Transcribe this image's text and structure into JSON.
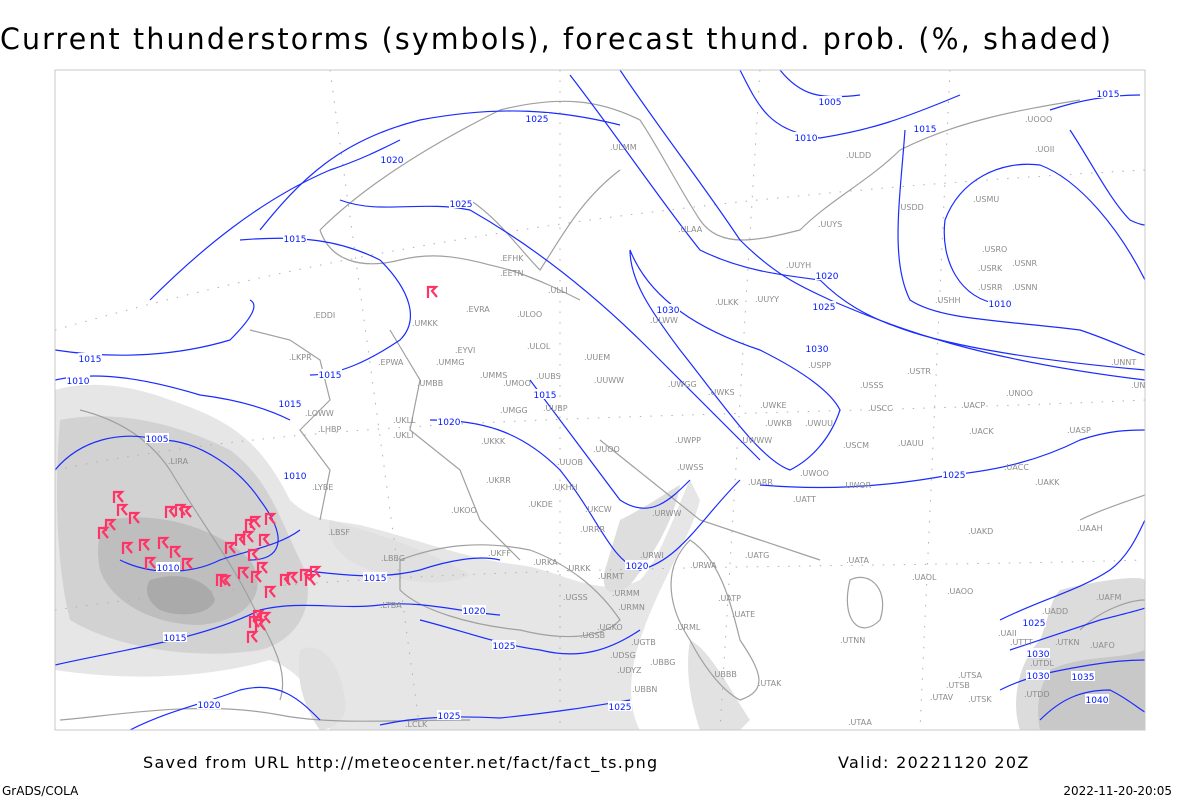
{
  "title": "Current thunderstorms (symbols), forecast thund. prob. (%, shaded)",
  "footer": {
    "saved_from": "Saved from URL http://meteocenter.net/fact/fact_ts.png",
    "valid": "Valid: 20221120 20Z",
    "software": "GrADS/COLA",
    "generated": "2022-11-20-20:05"
  },
  "map": {
    "colors": {
      "isobar": "#1a2cff",
      "coastline": "#a0a0a0",
      "thunderstorm_symbol": "#ff3366",
      "probability_shading": [
        "#e6e6e6",
        "#d2d2d2",
        "#bebebe",
        "#aaaaaa"
      ]
    },
    "isobar_unit": "hPa",
    "isobar_labels": [
      "1025",
      "1020",
      "1025",
      "1015",
      "1005",
      "1010",
      "1015",
      "1015",
      "1020",
      "1025",
      "1030",
      "1030",
      "1010",
      "1015",
      "1015",
      "1010",
      "1015",
      "1015",
      "1020",
      "1005",
      "1010",
      "1010",
      "1015",
      "1020",
      "1020",
      "1015",
      "1025",
      "1025",
      "1020",
      "1025",
      "1025",
      "1025",
      "1030",
      "1030",
      "1035",
      "1040"
    ],
    "stations": [
      "EDDI",
      "UMKK",
      "EVRA",
      "ULOO",
      "EYVI",
      "ULOL",
      "UMMG",
      "EPWA",
      "LKPR",
      "UMMS",
      "UMBB",
      "UMOO",
      "UUBS",
      "UUEM",
      "UUWW",
      "UMGG",
      "UUBP",
      "UKLL",
      "UKLI",
      "UKKK",
      "UUOO",
      "UUOB",
      "LOWW",
      "LHBP",
      "LYBE",
      "LBSF",
      "LIRA",
      "LBBG",
      "LTBA",
      "LCLK",
      "UKOO",
      "UKRR",
      "UKDE",
      "UKHH",
      "UKCW",
      "URRR",
      "URWW",
      "UKFF",
      "URKA",
      "URKK",
      "URMT",
      "URWI",
      "URWA",
      "UATG",
      "UGSS",
      "URMM",
      "URMN",
      "UGKO",
      "UGSB",
      "UGTB",
      "UDSG",
      "UBBG",
      "UDYZ",
      "UBBN",
      "UBBB",
      "UTAK",
      "UTAA",
      "URML",
      "UATP",
      "UATE",
      "UATA",
      "UAOL",
      "UAOO",
      "UAKD",
      "UAAH",
      "UAFM",
      "UADD",
      "UAII",
      "UTKN",
      "UAFO",
      "UTTT",
      "UTDL",
      "UTSA",
      "UTSB",
      "UTAV",
      "UTSK",
      "UTDD",
      "UTNN",
      "EFHK",
      "EETN",
      "ULLI",
      "ULMM",
      "ULAA",
      "UUYS",
      "ULKK",
      "UUYY",
      "UUYH",
      "ULWW",
      "USPP",
      "USSS",
      "USCC",
      "USCM",
      "UAUU",
      "UWKS",
      "UWKE",
      "UWKB",
      "UWUU",
      "UWWW",
      "UWGG",
      "UWPP",
      "UWSS",
      "UWOO",
      "UWOR",
      "UARR",
      "UATT",
      "UACC",
      "UAKK",
      "UASP",
      "UACK",
      "UACP",
      "USTR",
      "UNOO",
      "UNNT",
      "UNBB",
      "USHH",
      "USRR",
      "USNN",
      "USRK",
      "USNR",
      "USRO",
      "USMU",
      "USDD",
      "UOOO",
      "UOII",
      "ULDD"
    ]
  }
}
